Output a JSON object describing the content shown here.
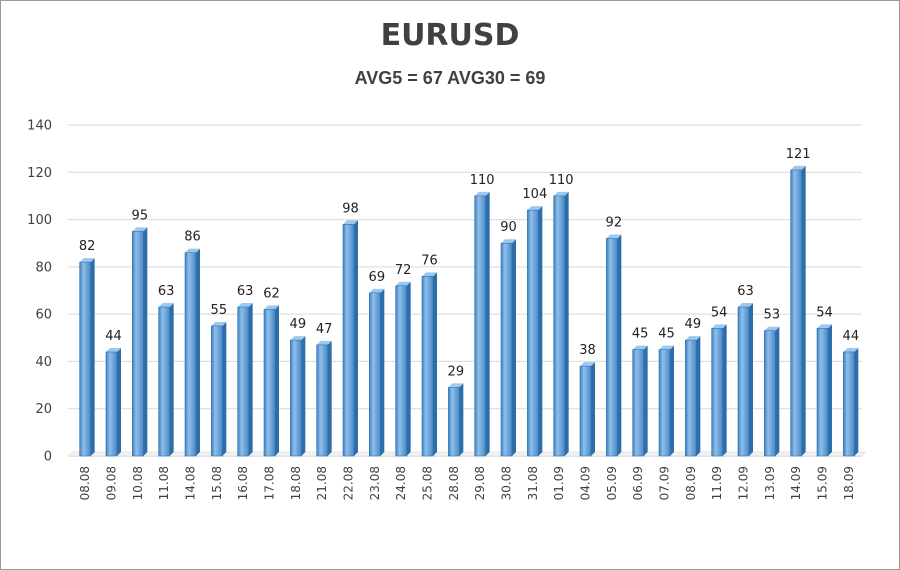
{
  "chart_data": {
    "type": "bar",
    "title": "EURUSD",
    "subtitle": "AVG5 = 67 AVG30 = 69",
    "categories": [
      "08.08",
      "09.08",
      "10.08",
      "11.08",
      "14.08",
      "15.08",
      "16.08",
      "17.08",
      "18.08",
      "21.08",
      "22.08",
      "23.08",
      "24.08",
      "25.08",
      "28.08",
      "29.08",
      "30.08",
      "31.08",
      "01.09",
      "04.09",
      "05.09",
      "06.09",
      "07.09",
      "08.09",
      "11.09",
      "12.09",
      "13.09",
      "14.09",
      "15.09",
      "18.09"
    ],
    "values": [
      82,
      44,
      95,
      63,
      86,
      55,
      63,
      62,
      49,
      47,
      98,
      69,
      72,
      76,
      29,
      110,
      90,
      104,
      110,
      38,
      92,
      45,
      45,
      49,
      54,
      63,
      53,
      121,
      54,
      44
    ],
    "ylim": [
      0,
      140
    ],
    "yticks": [
      0,
      20,
      40,
      60,
      80,
      100,
      120,
      140
    ],
    "xlabel": "",
    "ylabel": "",
    "grid": true,
    "legend": "none",
    "bar_color": "#5b9bd5",
    "bar_edge_color": "#2e75b6"
  }
}
